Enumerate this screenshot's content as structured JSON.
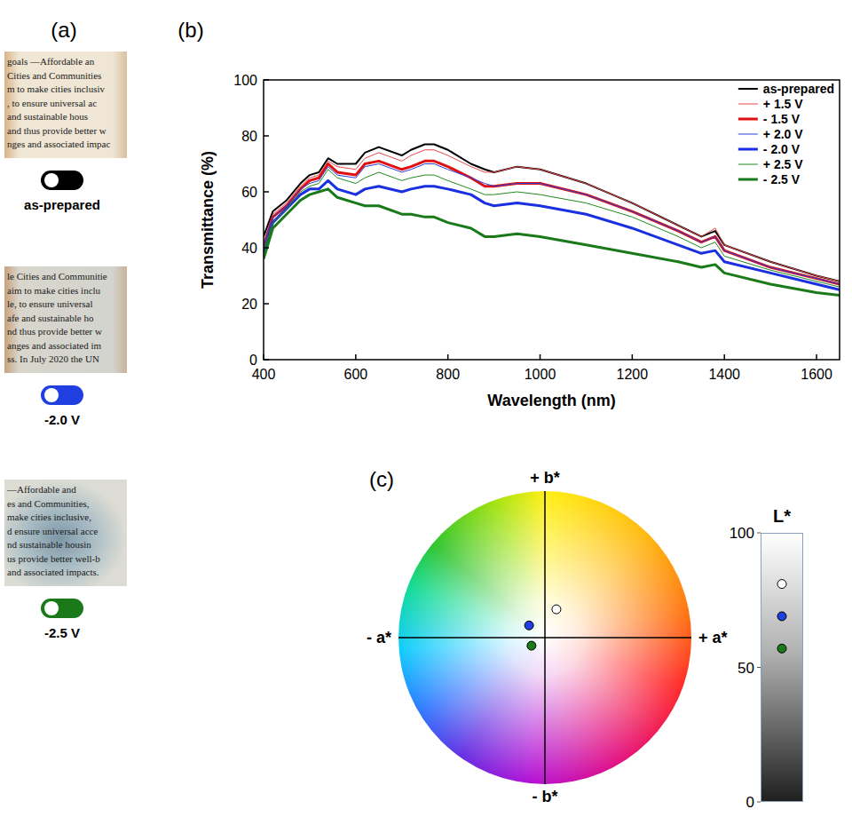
{
  "panel_labels": [
    "(a)",
    "(b)",
    "(c)"
  ],
  "photos": [
    {
      "label": "as-prepared",
      "color": "#000000",
      "lines": [
        "goals —Affordable an",
        "Cities and Communities",
        "m to make cities inclusiv",
        ", to ensure universal ac",
        "and sustainable hous",
        "and thus provide better w",
        "nges and associated impac"
      ]
    },
    {
      "label": "-2.0 V",
      "color": "#1f3fe0",
      "lines": [
        "le Cities and Communitie",
        "aim to make cities inclu",
        "le, to ensure universal",
        "afe and sustainable ho",
        "nd thus provide better w",
        "anges and associated im",
        "ss. In July 2020 the UN"
      ]
    },
    {
      "label": "-2.5 V",
      "color": "#1a7a1a",
      "lines": [
        "—Affordable and",
        "es and Communities,",
        "make cities inclusive,",
        "d ensure universal acce",
        "nd sustainable housin",
        "us provide better well-b",
        "and associated impacts."
      ]
    }
  ],
  "chart_data": [
    {
      "type": "line",
      "xlabel": "Wavelength (nm)",
      "ylabel": "Transmittance (%)",
      "x": [
        400,
        420,
        450,
        480,
        500,
        520,
        540,
        560,
        600,
        620,
        650,
        700,
        720,
        750,
        770,
        800,
        850,
        880,
        900,
        950,
        1000,
        1100,
        1200,
        1300,
        1350,
        1380,
        1400,
        1500,
        1600,
        1650
      ],
      "xlim": [
        400,
        1650
      ],
      "xticks": [
        400,
        600,
        800,
        1000,
        1200,
        1400,
        1600
      ],
      "ylim": [
        0,
        100
      ],
      "yticks": [
        0,
        20,
        40,
        60,
        80,
        100
      ],
      "grid": false,
      "legend": "upper right",
      "series": [
        {
          "name": "as-prepared",
          "color": "#000000",
          "line_style": "medium",
          "values": [
            44,
            53,
            57,
            63,
            66,
            67,
            72,
            70,
            70,
            74,
            76,
            73,
            75,
            77,
            77,
            75,
            70,
            68,
            67,
            69,
            68,
            63,
            56,
            48,
            44,
            46,
            41,
            35,
            30,
            28
          ]
        },
        {
          "name": "+ 1.5 V",
          "color": "#e8474a",
          "line_style": "thin",
          "values": [
            42,
            52,
            56,
            62,
            65,
            66,
            71,
            69,
            68,
            72,
            74,
            71,
            73,
            75,
            75,
            73,
            69,
            67,
            67,
            69,
            68,
            63,
            56,
            48,
            44,
            47,
            41,
            35,
            30,
            28
          ]
        },
        {
          "name": "- 1.5 V",
          "color": "#e01010",
          "line_style": "thick",
          "values": [
            40,
            51,
            55,
            61,
            64,
            65,
            70,
            67,
            66,
            70,
            71,
            68,
            69,
            71,
            71,
            69,
            65,
            62,
            62,
            63,
            63,
            59,
            53,
            46,
            42,
            44,
            39,
            33,
            29,
            27
          ]
        },
        {
          "name": "+ 2.0 V",
          "color": "#2a3fe0",
          "line_style": "thin",
          "values": [
            41,
            51,
            55,
            61,
            63,
            64,
            69,
            66,
            65,
            69,
            70,
            67,
            68,
            70,
            70,
            68,
            65,
            63,
            62,
            63,
            63,
            59,
            53,
            46,
            42,
            44,
            39,
            33,
            29,
            27
          ]
        },
        {
          "name": "- 2.0 V",
          "color": "#1a2fe0",
          "line_style": "thick",
          "values": [
            38,
            49,
            54,
            59,
            61,
            61,
            64,
            61,
            59,
            61,
            62,
            60,
            61,
            62,
            62,
            61,
            59,
            56,
            55,
            56,
            55,
            52,
            47,
            41,
            38,
            39,
            35,
            31,
            27,
            25
          ]
        },
        {
          "name": "+ 2.5 V",
          "color": "#1f8a1f",
          "line_style": "thin",
          "values": [
            39,
            49,
            54,
            60,
            62,
            63,
            68,
            65,
            63,
            65,
            67,
            64,
            65,
            66,
            66,
            64,
            61,
            59,
            59,
            60,
            59,
            56,
            51,
            44,
            40,
            42,
            37,
            32,
            28,
            26
          ]
        },
        {
          "name": "- 2.5 V",
          "color": "#1a7a1a",
          "line_style": "thick",
          "values": [
            36,
            47,
            52,
            57,
            59,
            60,
            61,
            58,
            56,
            55,
            55,
            52,
            52,
            51,
            51,
            49,
            47,
            44,
            44,
            45,
            44,
            41,
            38,
            35,
            33,
            34,
            31,
            27,
            24,
            23
          ]
        }
      ]
    },
    {
      "type": "scatter",
      "axis_labels": {
        "x_neg": "- a*",
        "x_pos": "+ a*",
        "y_pos": "+ b*",
        "y_neg": "- b*"
      },
      "xlim": [
        -60,
        60
      ],
      "ylim": [
        -60,
        60
      ],
      "tick_labels": false,
      "x": [
        4.7,
        -6.5,
        -5.5
      ],
      "values": [
        11.6,
        5,
        -3.3
      ],
      "colors": [
        "#ffffff",
        "#1f3fe0",
        "#1a7a1a"
      ]
    },
    {
      "type": "scatter",
      "title": "L*",
      "ylim": [
        0,
        100
      ],
      "yticks": [
        0,
        50,
        100
      ],
      "values": [
        81,
        69,
        57
      ],
      "colors": [
        "#ffffff",
        "#1f3fe0",
        "#1a7a1a"
      ]
    }
  ]
}
